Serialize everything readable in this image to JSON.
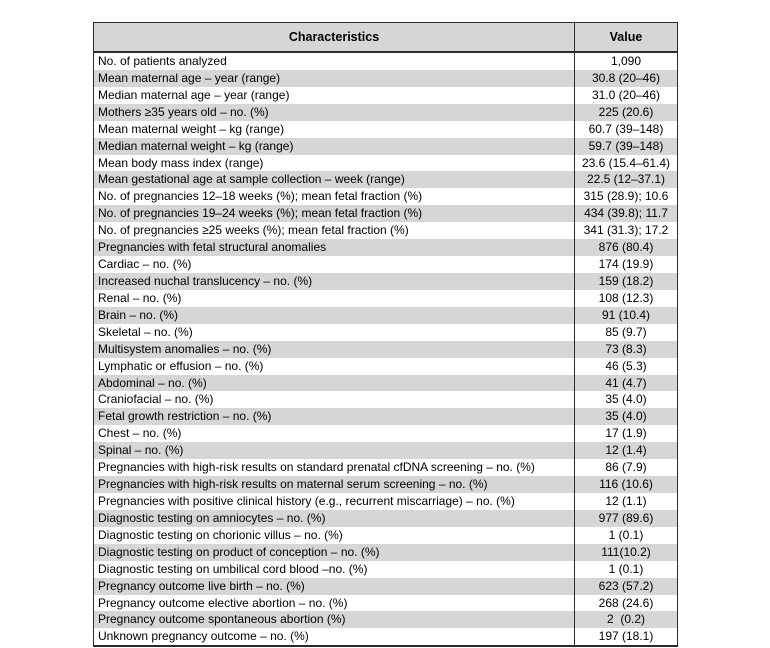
{
  "table": {
    "headers": {
      "characteristics": "Characteristics",
      "value": "Value"
    },
    "rows": [
      {
        "label": "No. of patients analyzed",
        "value": "1,090"
      },
      {
        "label": "Mean maternal age – year (range)",
        "value": "30.8 (20–46)"
      },
      {
        "label": "Median maternal age – year (range)",
        "value": "31.0 (20–46)"
      },
      {
        "label": "Mothers ≥35 years old – no. (%)",
        "value": "225 (20.6)"
      },
      {
        "label": "Mean maternal weight – kg (range)",
        "value": "60.7 (39–148)"
      },
      {
        "label": "Median maternal weight – kg (range)",
        "value": "59.7 (39–148)"
      },
      {
        "label": "Mean body mass index (range)",
        "value": "23.6 (15.4–61.4)"
      },
      {
        "label": "Mean gestational age at sample collection – week (range)",
        "value": "22.5 (12–37.1)"
      },
      {
        "label": "No. of pregnancies 12–18 weeks (%); mean fetal fraction (%)",
        "value": "315 (28.9); 10.6"
      },
      {
        "label": "No. of pregnancies 19–24 weeks (%); mean fetal fraction (%)",
        "value": "434 (39.8); 11.7"
      },
      {
        "label": "No. of pregnancies ≥25 weeks (%); mean fetal fraction (%)",
        "value": "341 (31.3); 17.2"
      },
      {
        "label": "Pregnancies with fetal structural anomalies",
        "value": "876 (80.4)"
      },
      {
        "label": "Cardiac – no. (%)",
        "value": "174 (19.9)"
      },
      {
        "label": "Increased nuchal translucency – no. (%)",
        "value": "159 (18.2)"
      },
      {
        "label": "Renal – no. (%)",
        "value": "108 (12.3)"
      },
      {
        "label": "Brain – no. (%)",
        "value": "91 (10.4)"
      },
      {
        "label": "Skeletal – no. (%)",
        "value": "85 (9.7)"
      },
      {
        "label": "Multisystem anomalies – no. (%)",
        "value": "73 (8.3)"
      },
      {
        "label": "Lymphatic or effusion – no. (%)",
        "value": "46 (5.3)"
      },
      {
        "label": "Abdominal – no. (%)",
        "value": "41 (4.7)"
      },
      {
        "label": "Craniofacial – no. (%)",
        "value": "35 (4.0)"
      },
      {
        "label": "Fetal growth restriction – no. (%)",
        "value": "35 (4.0)"
      },
      {
        "label": "Chest – no. (%)",
        "value": "17 (1.9)"
      },
      {
        "label": "Spinal – no. (%)",
        "value": "12 (1.4)"
      },
      {
        "label": "Pregnancies with high-risk results on standard prenatal cfDNA screening – no. (%)",
        "value": "86 (7.9)"
      },
      {
        "label": "Pregnancies with high-risk results on maternal serum screening – no. (%)",
        "value": "116 (10.6)"
      },
      {
        "label": "Pregnancies with positive clinical history (e.g., recurrent miscarriage) – no. (%)",
        "value": "12 (1.1)"
      },
      {
        "label": "Diagnostic testing on amniocytes – no. (%)",
        "value": "977 (89.6)"
      },
      {
        "label": "Diagnostic testing on chorionic villus – no. (%)",
        "value": "1 (0.1)"
      },
      {
        "label": "Diagnostic testing on product of conception – no. (%)",
        "value": "111(10.2)"
      },
      {
        "label": "Diagnostic testing on umbilical cord blood –no. (%)",
        "value": "1 (0.1)"
      },
      {
        "label": "Pregnancy outcome live birth – no. (%)",
        "value": "623 (57.2)"
      },
      {
        "label": "Pregnancy outcome elective abortion – no. (%)",
        "value": "268 (24.6)"
      },
      {
        "label": "Pregnancy outcome spontaneous abortion (%)",
        "value": "2  (0.2)"
      },
      {
        "label": "Unknown pregnancy outcome – no. (%)",
        "value": "197 (18.1)"
      }
    ]
  }
}
